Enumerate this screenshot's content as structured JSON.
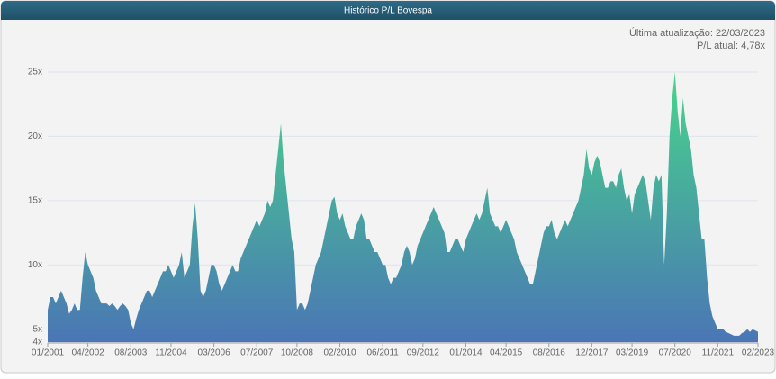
{
  "chart_data": {
    "type": "area",
    "title": "Histórico P/L Bovespa",
    "annotations": [
      "Última atualização: 22/03/2023",
      "P/L atual: 4,78x"
    ],
    "x": [
      "01/2001",
      "02/2001",
      "03/2001",
      "04/2001",
      "05/2001",
      "06/2001",
      "07/2001",
      "08/2001",
      "09/2001",
      "10/2001",
      "11/2001",
      "12/2001",
      "01/2002",
      "02/2002",
      "03/2002",
      "04/2002",
      "05/2002",
      "06/2002",
      "07/2002",
      "08/2002",
      "09/2002",
      "10/2002",
      "11/2002",
      "12/2002",
      "01/2003",
      "02/2003",
      "03/2003",
      "04/2003",
      "05/2003",
      "06/2003",
      "07/2003",
      "08/2003",
      "09/2003",
      "10/2003",
      "11/2003",
      "12/2003",
      "01/2004",
      "02/2004",
      "03/2004",
      "04/2004",
      "05/2004",
      "06/2004",
      "07/2004",
      "08/2004",
      "09/2004",
      "10/2004",
      "11/2004",
      "12/2004",
      "01/2005",
      "02/2005",
      "03/2005",
      "04/2005",
      "05/2005",
      "06/2005",
      "07/2005",
      "08/2005",
      "09/2005",
      "10/2005",
      "11/2005",
      "12/2005",
      "01/2006",
      "02/2006",
      "03/2006",
      "04/2006",
      "05/2006",
      "06/2006",
      "07/2006",
      "08/2006",
      "09/2006",
      "10/2006",
      "11/2006",
      "12/2006",
      "01/2007",
      "02/2007",
      "03/2007",
      "04/2007",
      "05/2007",
      "06/2007",
      "07/2007",
      "08/2007",
      "09/2007",
      "10/2007",
      "11/2007",
      "12/2007",
      "01/2008",
      "02/2008",
      "03/2008",
      "04/2008",
      "05/2008",
      "06/2008",
      "07/2008",
      "08/2008",
      "09/2008",
      "10/2008",
      "11/2008",
      "12/2008",
      "01/2009",
      "02/2009",
      "03/2009",
      "04/2009",
      "05/2009",
      "06/2009",
      "07/2009",
      "08/2009",
      "09/2009",
      "10/2009",
      "11/2009",
      "12/2009",
      "01/2010",
      "02/2010",
      "03/2010",
      "04/2010",
      "05/2010",
      "06/2010",
      "07/2010",
      "08/2010",
      "09/2010",
      "10/2010",
      "11/2010",
      "12/2010",
      "01/2011",
      "02/2011",
      "03/2011",
      "04/2011",
      "05/2011",
      "06/2011",
      "07/2011",
      "08/2011",
      "09/2011",
      "10/2011",
      "11/2011",
      "12/2011",
      "01/2012",
      "02/2012",
      "03/2012",
      "04/2012",
      "05/2012",
      "06/2012",
      "07/2012",
      "08/2012",
      "09/2012",
      "10/2012",
      "11/2012",
      "12/2012",
      "01/2013",
      "02/2013",
      "03/2013",
      "04/2013",
      "05/2013",
      "06/2013",
      "07/2013",
      "08/2013",
      "09/2013",
      "10/2013",
      "11/2013",
      "12/2013",
      "01/2014",
      "02/2014",
      "03/2014",
      "04/2014",
      "05/2014",
      "06/2014",
      "07/2014",
      "08/2014",
      "09/2014",
      "10/2014",
      "11/2014",
      "12/2014",
      "01/2015",
      "02/2015",
      "03/2015",
      "04/2015",
      "05/2015",
      "06/2015",
      "07/2015",
      "08/2015",
      "09/2015",
      "10/2015",
      "11/2015",
      "12/2015",
      "01/2016",
      "02/2016",
      "03/2016",
      "04/2016",
      "05/2016",
      "06/2016",
      "07/2016",
      "08/2016",
      "09/2016",
      "10/2016",
      "11/2016",
      "12/2016",
      "01/2017",
      "02/2017",
      "03/2017",
      "04/2017",
      "05/2017",
      "06/2017",
      "07/2017",
      "08/2017",
      "09/2017",
      "10/2017",
      "11/2017",
      "12/2017",
      "01/2018",
      "02/2018",
      "03/2018",
      "04/2018",
      "05/2018",
      "06/2018",
      "07/2018",
      "08/2018",
      "09/2018",
      "10/2018",
      "11/2018",
      "12/2018",
      "01/2019",
      "02/2019",
      "03/2019",
      "04/2019",
      "05/2019",
      "06/2019",
      "07/2019",
      "08/2019",
      "09/2019",
      "10/2019",
      "11/2019",
      "12/2019",
      "01/2020",
      "02/2020",
      "03/2020",
      "04/2020",
      "05/2020",
      "06/2020",
      "07/2020",
      "08/2020",
      "09/2020",
      "10/2020",
      "11/2020",
      "12/2020",
      "01/2021",
      "02/2021",
      "03/2021",
      "04/2021",
      "05/2021",
      "06/2021",
      "07/2021",
      "08/2021",
      "09/2021",
      "10/2021",
      "11/2021",
      "12/2021",
      "01/2022",
      "02/2022",
      "03/2022",
      "04/2022",
      "05/2022",
      "06/2022",
      "07/2022",
      "08/2022",
      "09/2022",
      "10/2022",
      "11/2022",
      "12/2022",
      "01/2023",
      "02/2023"
    ],
    "series": [
      {
        "name": "P/L",
        "colors": [
          "#47d58b",
          "#4a76b5"
        ],
        "values": [
          6.5,
          7.5,
          7.5,
          7,
          7.5,
          8,
          7.5,
          7,
          6.2,
          6.5,
          7,
          6.5,
          6.5,
          9,
          11,
          10,
          9.5,
          9,
          8,
          7.5,
          7,
          7,
          7,
          6.8,
          7,
          6.8,
          6.5,
          6.8,
          7,
          6.8,
          6.5,
          5.5,
          5,
          5.8,
          6.5,
          7,
          7.5,
          8,
          8,
          7.5,
          8,
          8.5,
          9,
          9.5,
          9.5,
          10,
          9.5,
          9,
          9.5,
          10,
          11,
          9,
          9.5,
          10,
          13,
          14.8,
          12,
          8,
          7.5,
          8,
          9,
          10,
          10,
          9.5,
          8.5,
          8,
          8.5,
          9,
          9.5,
          10,
          9.5,
          9.5,
          10.5,
          11,
          11.5,
          12,
          12.5,
          13,
          13.5,
          13,
          13.5,
          14,
          15,
          14.5,
          15,
          17,
          19,
          21,
          18,
          16,
          14,
          12,
          11,
          6.5,
          7,
          7,
          6.5,
          7,
          8,
          9,
          10,
          10.5,
          11,
          12,
          13,
          14,
          15,
          15.3,
          14,
          13.5,
          14,
          13,
          12.5,
          12,
          12,
          13,
          13.5,
          14,
          13.5,
          12,
          12,
          11.5,
          11,
          11,
          10.5,
          10,
          10,
          9,
          8.5,
          9,
          9,
          9.5,
          10,
          11,
          11.5,
          11,
          10,
          10.5,
          11.5,
          12,
          12.5,
          13,
          13.5,
          14,
          14.5,
          14,
          13.5,
          13,
          12.5,
          11,
          11,
          11.5,
          12,
          12,
          11.5,
          11,
          12,
          12.5,
          13,
          13.5,
          14,
          13.5,
          14,
          15,
          16,
          14,
          13.5,
          13,
          13,
          12.5,
          13,
          13.5,
          13,
          12.5,
          12,
          11,
          10.5,
          10,
          9.5,
          9,
          8.5,
          8.5,
          9.5,
          10.5,
          11.5,
          12.5,
          13,
          13,
          13.5,
          12.5,
          12,
          12.5,
          13,
          13.5,
          13,
          13.5,
          14,
          14.5,
          15,
          16,
          17,
          19,
          17.5,
          17,
          18,
          18.5,
          18,
          17,
          16,
          16,
          16.5,
          16.5,
          16,
          17,
          17.5,
          16,
          15,
          15.5,
          14,
          15.5,
          16,
          16.5,
          17,
          16.5,
          15,
          13.5,
          16,
          17,
          16.5,
          17,
          10,
          14,
          20,
          23,
          25,
          22,
          20,
          23,
          21,
          20,
          19,
          17,
          16,
          14,
          12,
          12,
          9,
          7,
          6,
          5.5,
          5,
          5,
          5,
          4.8,
          4.7,
          4.6,
          4.5,
          4.5,
          4.5,
          4.7,
          4.8,
          5,
          4.8,
          5,
          4.9,
          4.8
        ]
      }
    ],
    "ylim": [
      4,
      25
    ],
    "yticks": [
      {
        "value": 4,
        "label": "4x"
      },
      {
        "value": 5,
        "label": "5x"
      },
      {
        "value": 10,
        "label": "10x"
      },
      {
        "value": 15,
        "label": "15x"
      },
      {
        "value": 20,
        "label": "20x"
      },
      {
        "value": 25,
        "label": "25x"
      }
    ],
    "xticks": [
      "01/2001",
      "04/2002",
      "08/2003",
      "11/2004",
      "03/2006",
      "07/2007",
      "10/2008",
      "02/2010",
      "06/2011",
      "09/2012",
      "01/2014",
      "04/2015",
      "08/2016",
      "12/2017",
      "03/2019",
      "07/2020",
      "11/2021",
      "02/2023"
    ],
    "grid": true
  }
}
